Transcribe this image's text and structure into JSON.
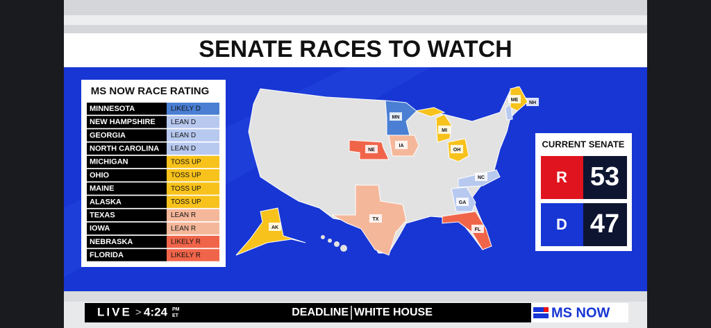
{
  "title": "SENATE RACES TO WATCH",
  "ratings": {
    "heading": "MS NOW RACE RATING",
    "rows": [
      [
        "MINNESOTA",
        "LIKELY D"
      ],
      [
        "NEW HAMPSHIRE",
        "LEAN D"
      ],
      [
        "GEORGIA",
        "LEAN D"
      ],
      [
        "NORTH CAROLINA",
        "LEAN D"
      ],
      [
        "MICHIGAN",
        "TOSS UP"
      ],
      [
        "OHIO",
        "TOSS UP"
      ],
      [
        "MAINE",
        "TOSS UP"
      ],
      [
        "ALASKA",
        "TOSS UP"
      ],
      [
        "TEXAS",
        "LEAN R"
      ],
      [
        "IOWA",
        "LEAN R"
      ],
      [
        "NEBRASKA",
        "LIKELY R"
      ],
      [
        "FLORIDA",
        "LIKELY R"
      ]
    ]
  },
  "map": {
    "states": [
      "MN",
      "NH",
      "ME",
      "MI",
      "NE",
      "IA",
      "OH",
      "NC",
      "GA",
      "TX",
      "AK",
      "FL"
    ]
  },
  "senate": {
    "heading": "CURRENT SENATE",
    "parties": [
      [
        "R",
        "53"
      ],
      [
        "D",
        "47"
      ]
    ]
  },
  "ticker": {
    "live": "LIVE",
    "arrow": ">",
    "time": "4:24",
    "ampm": "PM",
    "zone": "ET",
    "show": "DEADLINE",
    "show2": "WHITE HOUSE",
    "network": "MS NOW"
  }
}
